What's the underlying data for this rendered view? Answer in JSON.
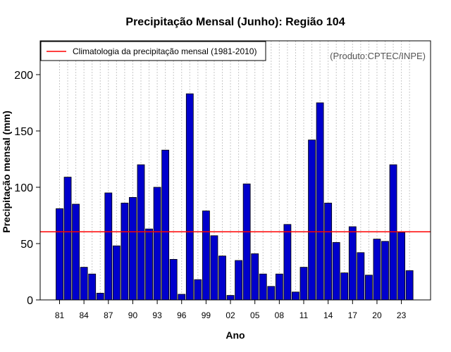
{
  "chart_data": {
    "type": "bar",
    "title": "Precipitação Mensal (Junho): Região 104",
    "xlabel": "Ano",
    "ylabel": "Precipitação mensal (mm)",
    "credit": "(Produto:CPTEC/INPE)",
    "ylim": [
      0,
      230
    ],
    "yticks": [
      0,
      50,
      100,
      150,
      200
    ],
    "grid": "vertical-dotted",
    "legend": {
      "placement": "top-left",
      "entries": [
        {
          "label": "Climatologia da precipitação mensal (1981-2010)",
          "color": "#ff0000"
        }
      ]
    },
    "climatology": 60.5,
    "bar_color": "#0000cc",
    "line_color": "#ff0000",
    "categories": [
      "1981",
      "1982",
      "1983",
      "1984",
      "1985",
      "1986",
      "1987",
      "1988",
      "1989",
      "1990",
      "1991",
      "1992",
      "1993",
      "1994",
      "1995",
      "1996",
      "1997",
      "1998",
      "1999",
      "2000",
      "2001",
      "2002",
      "2003",
      "2004",
      "2005",
      "2006",
      "2007",
      "2008",
      "2009",
      "2010",
      "2011",
      "2012",
      "2013",
      "2014",
      "2015",
      "2016",
      "2017",
      "2018",
      "2019",
      "2020",
      "2021",
      "2022",
      "2023",
      "2024"
    ],
    "xtick_labels": [
      {
        "index": 0,
        "label": "81"
      },
      {
        "index": 3,
        "label": "84"
      },
      {
        "index": 6,
        "label": "87"
      },
      {
        "index": 9,
        "label": "90"
      },
      {
        "index": 12,
        "label": "93"
      },
      {
        "index": 15,
        "label": "96"
      },
      {
        "index": 18,
        "label": "99"
      },
      {
        "index": 21,
        "label": "02"
      },
      {
        "index": 24,
        "label": "05"
      },
      {
        "index": 27,
        "label": "08"
      },
      {
        "index": 30,
        "label": "11"
      },
      {
        "index": 33,
        "label": "14"
      },
      {
        "index": 36,
        "label": "17"
      },
      {
        "index": 39,
        "label": "20"
      },
      {
        "index": 42,
        "label": "23"
      }
    ],
    "values": [
      81,
      109,
      85,
      29,
      23,
      6,
      95,
      48,
      86,
      91,
      120,
      63,
      100,
      133,
      36,
      5,
      183,
      18,
      79,
      57,
      39,
      4,
      35,
      103,
      41,
      23,
      12,
      23,
      67,
      7,
      29,
      142,
      175,
      86,
      51,
      24,
      65,
      42,
      22,
      54,
      52,
      120,
      60,
      26
    ]
  }
}
